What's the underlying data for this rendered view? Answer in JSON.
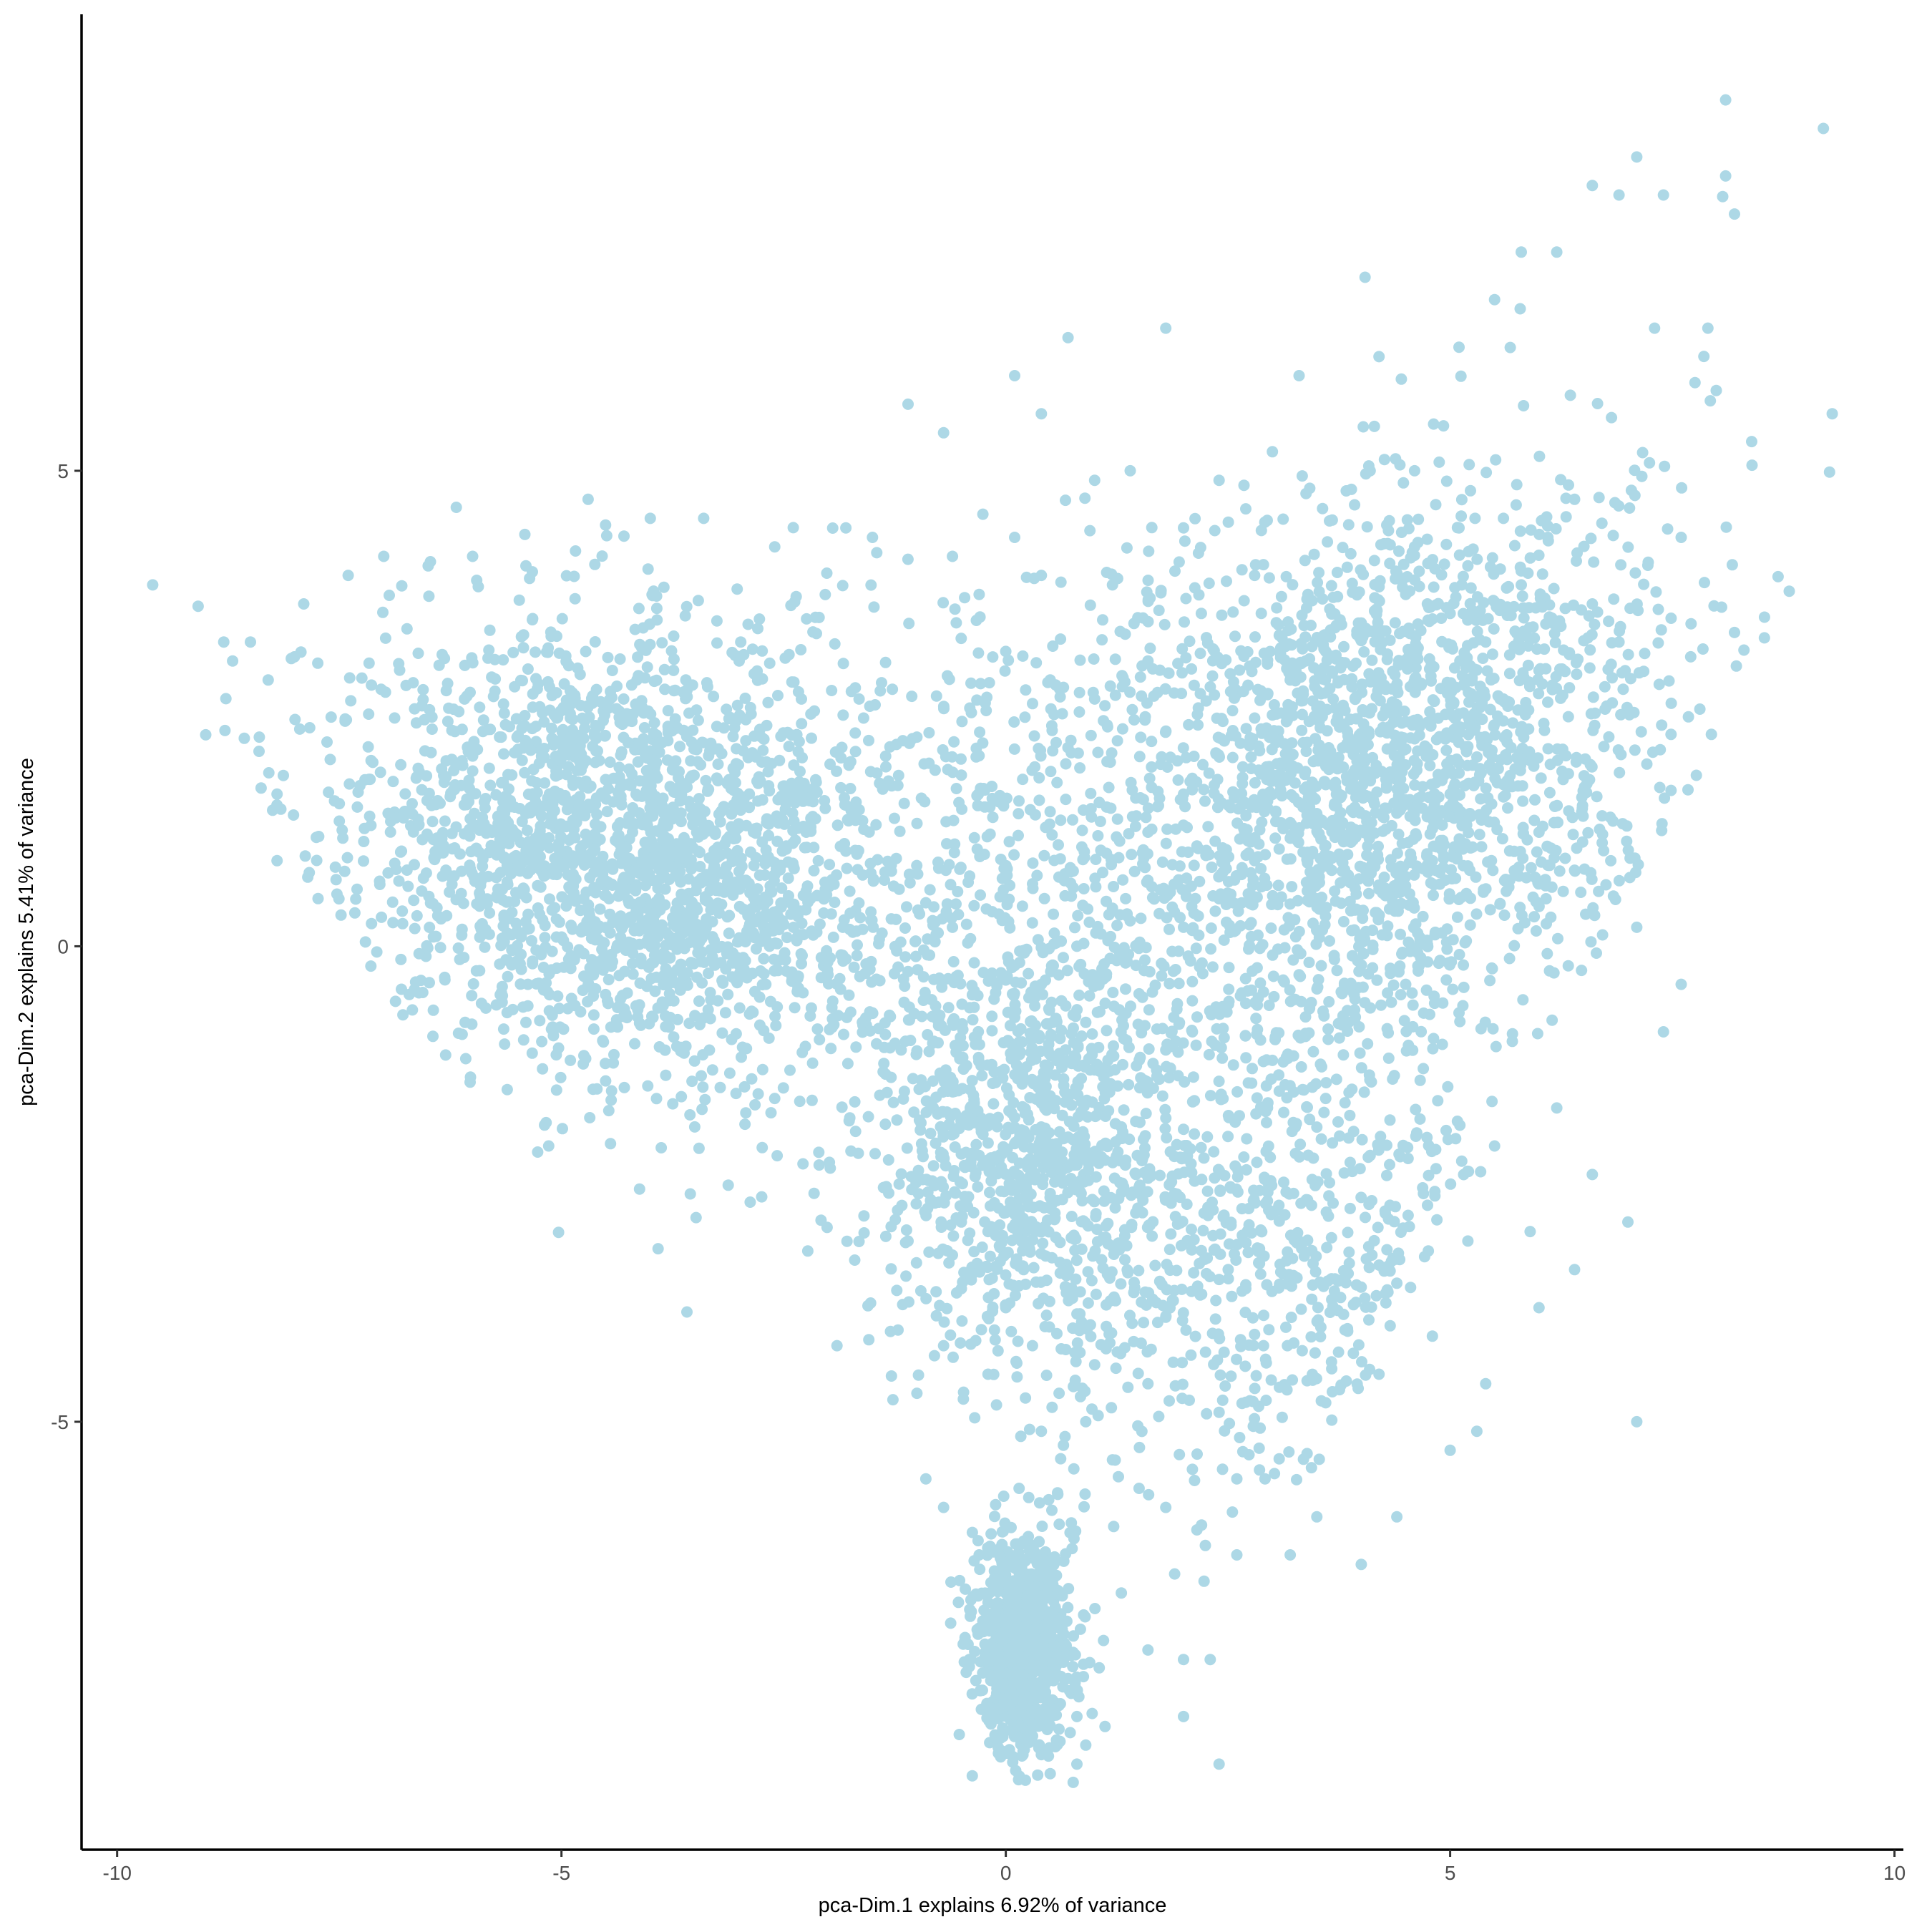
{
  "chart_data": {
    "type": "scatter",
    "title": "",
    "xlabel": "pca-Dim.1 explains 6.92% of variance",
    "ylabel": "pca-Dim.2 explains 5.41% of variance",
    "xlim": [
      -10.4,
      10.1
    ],
    "ylim": [
      -9.5,
      9.8
    ],
    "x_ticks": [
      -10,
      -5,
      0,
      5,
      10
    ],
    "y_ticks": [
      -5,
      0,
      5
    ],
    "x_tick_labels": [
      "-10",
      "-5",
      "0",
      "5",
      "10"
    ],
    "y_tick_labels": [
      "-5",
      "0",
      "5"
    ],
    "grid": false,
    "legend": "none",
    "point_color": "#ADD8E6",
    "axis_color": "#000000",
    "approx_point_count": 8000,
    "point_samples": [
      [
        -9.6,
        3.8
      ],
      [
        -8.8,
        3.2
      ],
      [
        -8.7,
        3.0
      ],
      [
        -8.5,
        3.2
      ],
      [
        -8.3,
        2.8
      ],
      [
        -8.4,
        2.2
      ],
      [
        -8.2,
        0.9
      ],
      [
        -8.2,
        1.6
      ],
      [
        -7.9,
        3.6
      ],
      [
        -7.4,
        3.9
      ],
      [
        -7.0,
        4.1
      ],
      [
        -6.5,
        4.0
      ],
      [
        -6.0,
        4.1
      ],
      [
        -5.4,
        4.0
      ],
      [
        -4.7,
        4.7
      ],
      [
        -4.0,
        4.5
      ],
      [
        -3.4,
        4.5
      ],
      [
        -2.6,
        4.2
      ],
      [
        -1.8,
        4.4
      ],
      [
        -1.5,
        4.3
      ],
      [
        -0.6,
        4.1
      ],
      [
        0.1,
        4.3
      ],
      [
        1.4,
        5.0
      ],
      [
        1.0,
        4.9
      ],
      [
        -1.1,
        5.7
      ],
      [
        -0.7,
        5.4
      ],
      [
        0.1,
        6.0
      ],
      [
        0.4,
        5.6
      ],
      [
        0.7,
        6.4
      ],
      [
        1.8,
        6.5
      ],
      [
        3.3,
        6.0
      ],
      [
        2.4,
        4.9
      ],
      [
        3.0,
        5.2
      ],
      [
        4.1,
        5.0
      ],
      [
        4.6,
        5.0
      ],
      [
        5.1,
        4.4
      ],
      [
        4.2,
        6.2
      ],
      [
        5.1,
        6.3
      ],
      [
        5.5,
        6.8
      ],
      [
        5.8,
        7.3
      ],
      [
        6.2,
        7.3
      ],
      [
        6.6,
        8.0
      ],
      [
        6.9,
        7.9
      ],
      [
        7.1,
        8.3
      ],
      [
        7.4,
        7.9
      ],
      [
        8.1,
        8.9
      ],
      [
        8.1,
        8.1
      ],
      [
        8.2,
        7.7
      ],
      [
        9.2,
        8.6
      ],
      [
        9.3,
        5.6
      ],
      [
        7.9,
        6.5
      ],
      [
        7.3,
        6.5
      ],
      [
        7.6,
        4.3
      ],
      [
        8.2,
        3.3
      ],
      [
        6.9,
        3.2
      ],
      [
        6.6,
        3.6
      ],
      [
        -7.5,
        1.5
      ],
      [
        -7.3,
        0.6
      ],
      [
        -6.8,
        1.0
      ],
      [
        -6.3,
        0.8
      ],
      [
        -5.9,
        -0.6
      ],
      [
        -5.4,
        -0.8
      ],
      [
        -4.9,
        -1.2
      ],
      [
        -5.6,
        1.3
      ],
      [
        -5.3,
        1.1
      ],
      [
        -5.0,
        0.9
      ],
      [
        -4.6,
        0.8
      ],
      [
        -4.3,
        0.6
      ],
      [
        -4.0,
        0.4
      ],
      [
        -3.6,
        0.3
      ],
      [
        -3.3,
        0.1
      ],
      [
        -3.0,
        -0.2
      ],
      [
        -2.7,
        -0.4
      ],
      [
        -4.8,
        1.5
      ],
      [
        -4.2,
        1.2
      ],
      [
        -3.7,
        1.0
      ],
      [
        -3.4,
        0.7
      ],
      [
        -6.0,
        2.0
      ],
      [
        -5.5,
        2.2
      ],
      [
        -4.9,
        2.4
      ],
      [
        -4.3,
        2.6
      ],
      [
        -3.6,
        2.8
      ],
      [
        -3.0,
        3.0
      ],
      [
        -2.3,
        2.6
      ],
      [
        -1.6,
        2.4
      ],
      [
        -1.0,
        2.2
      ],
      [
        -0.5,
        1.8
      ],
      [
        -2.4,
        1.4
      ],
      [
        -1.8,
        1.0
      ],
      [
        -1.2,
        0.6
      ],
      [
        -0.6,
        0.2
      ],
      [
        -2.0,
        -0.3
      ],
      [
        -1.5,
        -0.7
      ],
      [
        -1.0,
        -1.1
      ],
      [
        -4.6,
        -1.5
      ],
      [
        -3.3,
        -1.3
      ],
      [
        -3.5,
        -1.9
      ],
      [
        -2.6,
        -1.6
      ],
      [
        -2.1,
        -2.3
      ],
      [
        -1.9,
        -4.2
      ],
      [
        -1.7,
        -3.3
      ],
      [
        -1.1,
        -3.1
      ],
      [
        -1.0,
        -4.7
      ],
      [
        -0.9,
        -5.6
      ],
      [
        -0.7,
        -5.9
      ],
      [
        -1.2,
        -2.5
      ],
      [
        -0.8,
        -2.7
      ],
      [
        -0.5,
        -2.9
      ],
      [
        -0.2,
        -3.0
      ],
      [
        0.0,
        -2.8
      ],
      [
        0.2,
        -2.5
      ],
      [
        -0.3,
        -2.2
      ],
      [
        0.1,
        -1.8
      ],
      [
        0.4,
        -2.1
      ],
      [
        0.7,
        -1.6
      ],
      [
        1.0,
        -1.3
      ],
      [
        1.3,
        -1.9
      ],
      [
        -0.4,
        -1.7
      ],
      [
        0.0,
        -3.8
      ],
      [
        0.3,
        -4.2
      ],
      [
        0.6,
        -4.7
      ],
      [
        0.9,
        -5.0
      ],
      [
        1.2,
        -5.4
      ],
      [
        1.5,
        -5.7
      ],
      [
        1.8,
        -5.9
      ],
      [
        2.1,
        -5.5
      ],
      [
        0.5,
        -2.6
      ],
      [
        0.8,
        -2.3
      ],
      [
        0.2,
        -3.4
      ],
      [
        -0.5,
        -3.6
      ],
      [
        -0.7,
        -4.2
      ],
      [
        -0.2,
        -4.5
      ],
      [
        0.4,
        -5.1
      ],
      [
        0.0,
        -6.4
      ],
      [
        0.1,
        -6.7
      ],
      [
        0.2,
        -7.0
      ],
      [
        0.3,
        -7.3
      ],
      [
        0.1,
        -7.6
      ],
      [
        0.2,
        -7.9
      ],
      [
        0.3,
        -8.2
      ],
      [
        0.4,
        -8.5
      ],
      [
        0.5,
        -8.7
      ],
      [
        0.2,
        -8.4
      ],
      [
        0.0,
        -7.8
      ],
      [
        -0.1,
        -7.2
      ],
      [
        -0.2,
        -6.9
      ],
      [
        0.4,
        -6.6
      ],
      [
        0.6,
        -7.1
      ],
      [
        0.7,
        -7.7
      ],
      [
        0.8,
        -8.1
      ],
      [
        0.9,
        -8.4
      ],
      [
        0.8,
        -8.6
      ],
      [
        1.1,
        -7.3
      ],
      [
        1.3,
        -6.8
      ],
      [
        1.6,
        -7.4
      ],
      [
        1.9,
        -6.6
      ],
      [
        2.0,
        -7.5
      ],
      [
        2.3,
        -7.5
      ],
      [
        2.4,
        -8.6
      ],
      [
        2.0,
        -8.1
      ],
      [
        -0.3,
        -6.4
      ],
      [
        2.6,
        -6.4
      ],
      [
        3.2,
        -6.4
      ],
      [
        3.5,
        -6.0
      ],
      [
        4.0,
        -6.5
      ],
      [
        4.4,
        -6.0
      ],
      [
        5.0,
        -5.3
      ],
      [
        5.3,
        -5.1
      ],
      [
        2.9,
        -4.2
      ],
      [
        3.6,
        -4.8
      ],
      [
        4.2,
        -4.5
      ],
      [
        4.8,
        -4.1
      ],
      [
        5.4,
        -4.6
      ],
      [
        6.0,
        -3.8
      ],
      [
        6.4,
        -3.4
      ],
      [
        5.9,
        -3.0
      ],
      [
        5.5,
        -2.1
      ],
      [
        6.2,
        -1.7
      ],
      [
        6.6,
        -2.4
      ],
      [
        7.0,
        -2.9
      ],
      [
        7.1,
        -5.0
      ],
      [
        7.6,
        -0.4
      ],
      [
        7.4,
        -0.9
      ],
      [
        7.1,
        0.2
      ],
      [
        6.4,
        0.8
      ],
      [
        6.0,
        1.2
      ],
      [
        5.6,
        1.7
      ],
      [
        5.2,
        2.1
      ],
      [
        4.8,
        2.4
      ],
      [
        4.4,
        2.7
      ],
      [
        4.0,
        2.2
      ],
      [
        3.6,
        1.7
      ],
      [
        3.2,
        1.3
      ],
      [
        2.8,
        0.9
      ],
      [
        2.4,
        0.5
      ],
      [
        2.0,
        0.2
      ],
      [
        1.6,
        1.2
      ],
      [
        2.0,
        1.6
      ],
      [
        2.4,
        2.0
      ],
      [
        2.8,
        2.4
      ],
      [
        3.2,
        2.8
      ],
      [
        3.6,
        3.1
      ],
      [
        4.0,
        3.4
      ],
      [
        4.5,
        3.7
      ],
      [
        5.0,
        3.5
      ],
      [
        5.4,
        3.2
      ],
      [
        5.8,
        3.8
      ],
      [
        6.1,
        4.3
      ],
      [
        6.4,
        4.7
      ],
      [
        5.6,
        4.5
      ],
      [
        5.2,
        4.0
      ],
      [
        4.6,
        4.2
      ],
      [
        3.4,
        3.7
      ],
      [
        2.8,
        3.9
      ],
      [
        2.2,
        3.5
      ],
      [
        1.6,
        3.0
      ],
      [
        1.0,
        2.6
      ],
      [
        0.5,
        2.8
      ],
      [
        0.0,
        3.1
      ],
      [
        -0.3,
        3.7
      ],
      [
        0.4,
        3.9
      ],
      [
        1.2,
        3.8
      ],
      [
        2.0,
        4.4
      ],
      [
        2.7,
        4.6
      ],
      [
        1.2,
        0.4
      ],
      [
        0.8,
        0.0
      ],
      [
        0.4,
        -0.4
      ],
      [
        0.9,
        -0.8
      ],
      [
        1.5,
        -0.5
      ],
      [
        2.1,
        -0.9
      ],
      [
        2.7,
        -0.6
      ],
      [
        3.3,
        -0.3
      ],
      [
        3.9,
        -0.1
      ],
      [
        4.5,
        -0.4
      ],
      [
        5.1,
        -0.7
      ],
      [
        5.7,
        -1.0
      ],
      [
        4.2,
        0.6
      ],
      [
        4.8,
        0.9
      ],
      [
        3.8,
        1.1
      ],
      [
        4.4,
        1.4
      ],
      [
        5.0,
        1.6
      ],
      [
        5.6,
        2.6
      ],
      [
        6.0,
        2.9
      ],
      [
        3.0,
        -1.2
      ],
      [
        3.6,
        -1.6
      ],
      [
        4.1,
        -2.2
      ],
      [
        4.7,
        -2.6
      ],
      [
        5.2,
        -3.1
      ],
      [
        2.5,
        -2.0
      ],
      [
        1.9,
        -2.6
      ],
      [
        2.2,
        -3.2
      ],
      [
        2.7,
        -3.6
      ],
      [
        3.3,
        -3.1
      ],
      [
        3.8,
        -3.5
      ],
      [
        1.6,
        -4.6
      ],
      [
        1.8,
        -3.9
      ],
      [
        2.4,
        -4.9
      ],
      [
        2.6,
        -5.6
      ],
      [
        1.0,
        -4.4
      ]
    ]
  }
}
